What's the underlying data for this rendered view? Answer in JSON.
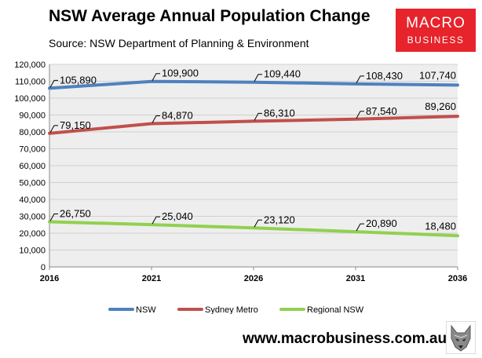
{
  "header": {
    "title": "NSW Average Annual Population Change",
    "subtitle": "Source: NSW Department of Planning & Environment"
  },
  "logo": {
    "line1": "MACRO",
    "line2": "BUSINESS"
  },
  "footer": {
    "website": "www.macrobusiness.com.au",
    "mascot_icon": "wolf-icon"
  },
  "colors": {
    "nsw": "#4f81bd",
    "sydney": "#c0504d",
    "regional": "#92d050",
    "plot_bg": "#eeeeee",
    "grid": "#d0d0d0",
    "logo_bg": "#e7232b"
  },
  "chart_data": {
    "type": "line",
    "title": "NSW Average Annual Population Change",
    "xlabel": "",
    "ylabel": "",
    "x": [
      "2016",
      "2021",
      "2026",
      "2031",
      "2036"
    ],
    "ylim": [
      0,
      120000
    ],
    "yticks": [
      "0",
      "10,000",
      "20,000",
      "30,000",
      "40,000",
      "50,000",
      "60,000",
      "70,000",
      "80,000",
      "90,000",
      "100,000",
      "110,000",
      "120,000"
    ],
    "grid": true,
    "legend_position": "bottom",
    "series": [
      {
        "name": "NSW",
        "values": [
          105890,
          109900,
          109440,
          108430,
          107740
        ],
        "labels": [
          "105,890",
          "109,900",
          "109,440",
          "108,430",
          "107,740"
        ]
      },
      {
        "name": "Sydney Metro",
        "values": [
          79150,
          84870,
          86310,
          87540,
          89260
        ],
        "labels": [
          "79,150",
          "84,870",
          "86,310",
          "87,540",
          "89,260"
        ]
      },
      {
        "name": "Regional NSW",
        "values": [
          26750,
          25040,
          23120,
          20890,
          18480
        ],
        "labels": [
          "26,750",
          "25,040",
          "23,120",
          "20,890",
          "18,480"
        ]
      }
    ]
  }
}
